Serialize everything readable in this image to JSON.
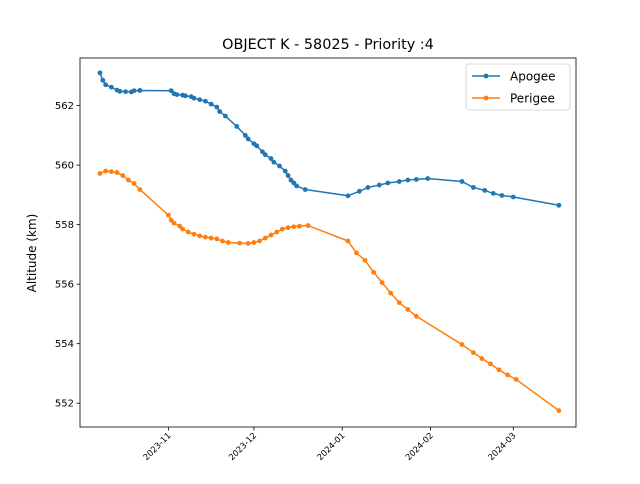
{
  "chart_data": {
    "type": "line",
    "title": "OBJECT K - 58025 - Priority :4",
    "xlabel": "",
    "ylabel": "Altitude (km)",
    "x_type": "date",
    "xlim": [
      "2023-10-01",
      "2024-03-23"
    ],
    "ylim": [
      551.2,
      563.6
    ],
    "x_ticks": [
      {
        "date": "2023-11-01",
        "label": "2023-11"
      },
      {
        "date": "2023-12-01",
        "label": "2023-12"
      },
      {
        "date": "2024-01-01",
        "label": "2024-01"
      },
      {
        "date": "2024-02-01",
        "label": "2024-02"
      },
      {
        "date": "2024-03-01",
        "label": "2024-03"
      }
    ],
    "y_ticks": [
      552,
      554,
      556,
      558,
      560,
      562
    ],
    "grid": false,
    "legend_position": "upper right",
    "series": [
      {
        "name": "Apogee",
        "color": "#1f77b4",
        "marker": "circle",
        "points": [
          [
            "2023-10-08",
            563.1
          ],
          [
            "2023-10-09",
            562.85
          ],
          [
            "2023-10-10",
            562.7
          ],
          [
            "2023-10-12",
            562.62
          ],
          [
            "2023-10-14",
            562.52
          ],
          [
            "2023-10-15",
            562.48
          ],
          [
            "2023-10-17",
            562.47
          ],
          [
            "2023-10-19",
            562.46
          ],
          [
            "2023-10-20",
            562.5
          ],
          [
            "2023-10-22",
            562.51
          ],
          [
            "2023-11-02",
            562.5
          ],
          [
            "2023-11-03",
            562.4
          ],
          [
            "2023-11-04",
            562.37
          ],
          [
            "2023-11-06",
            562.35
          ],
          [
            "2023-11-07",
            562.33
          ],
          [
            "2023-11-09",
            562.3
          ],
          [
            "2023-11-10",
            562.25
          ],
          [
            "2023-11-12",
            562.2
          ],
          [
            "2023-11-14",
            562.15
          ],
          [
            "2023-11-16",
            562.05
          ],
          [
            "2023-11-18",
            561.95
          ],
          [
            "2023-11-19",
            561.8
          ],
          [
            "2023-11-21",
            561.65
          ],
          [
            "2023-11-25",
            561.3
          ],
          [
            "2023-11-28",
            561.0
          ],
          [
            "2023-11-29",
            560.88
          ],
          [
            "2023-12-01",
            560.72
          ],
          [
            "2023-12-02",
            560.65
          ],
          [
            "2023-12-04",
            560.45
          ],
          [
            "2023-12-05",
            560.35
          ],
          [
            "2023-12-07",
            560.22
          ],
          [
            "2023-12-08",
            560.1
          ],
          [
            "2023-12-10",
            559.97
          ],
          [
            "2023-12-12",
            559.8
          ],
          [
            "2023-12-13",
            559.65
          ],
          [
            "2023-12-14",
            559.5
          ],
          [
            "2023-12-15",
            559.4
          ],
          [
            "2023-12-16",
            559.3
          ],
          [
            "2023-12-19",
            559.18
          ],
          [
            "2024-01-03",
            558.97
          ],
          [
            "2024-01-07",
            559.12
          ],
          [
            "2024-01-10",
            559.25
          ],
          [
            "2024-01-14",
            559.33
          ],
          [
            "2024-01-17",
            559.4
          ],
          [
            "2024-01-21",
            559.45
          ],
          [
            "2024-01-24",
            559.5
          ],
          [
            "2024-01-27",
            559.52
          ],
          [
            "2024-01-31",
            559.55
          ],
          [
            "2024-02-12",
            559.45
          ],
          [
            "2024-02-16",
            559.25
          ],
          [
            "2024-02-20",
            559.15
          ],
          [
            "2024-02-23",
            559.05
          ],
          [
            "2024-02-26",
            558.98
          ],
          [
            "2024-03-01",
            558.93
          ],
          [
            "2024-03-17",
            558.65
          ]
        ]
      },
      {
        "name": "Perigee",
        "color": "#ff7f0e",
        "marker": "circle",
        "points": [
          [
            "2023-10-08",
            559.72
          ],
          [
            "2023-10-10",
            559.8
          ],
          [
            "2023-10-12",
            559.78
          ],
          [
            "2023-10-14",
            559.75
          ],
          [
            "2023-10-16",
            559.65
          ],
          [
            "2023-10-18",
            559.5
          ],
          [
            "2023-10-20",
            559.38
          ],
          [
            "2023-10-22",
            559.18
          ],
          [
            "2023-11-01",
            558.32
          ],
          [
            "2023-11-02",
            558.15
          ],
          [
            "2023-11-03",
            558.05
          ],
          [
            "2023-11-05",
            557.95
          ],
          [
            "2023-11-06",
            557.85
          ],
          [
            "2023-11-08",
            557.75
          ],
          [
            "2023-11-10",
            557.68
          ],
          [
            "2023-11-12",
            557.62
          ],
          [
            "2023-11-14",
            557.58
          ],
          [
            "2023-11-16",
            557.55
          ],
          [
            "2023-11-18",
            557.52
          ],
          [
            "2023-11-20",
            557.45
          ],
          [
            "2023-11-22",
            557.4
          ],
          [
            "2023-11-26",
            557.38
          ],
          [
            "2023-11-29",
            557.37
          ],
          [
            "2023-12-01",
            557.4
          ],
          [
            "2023-12-03",
            557.45
          ],
          [
            "2023-12-05",
            557.55
          ],
          [
            "2023-12-07",
            557.65
          ],
          [
            "2023-12-09",
            557.75
          ],
          [
            "2023-12-11",
            557.85
          ],
          [
            "2023-12-13",
            557.9
          ],
          [
            "2023-12-15",
            557.93
          ],
          [
            "2023-12-17",
            557.95
          ],
          [
            "2023-12-20",
            557.97
          ],
          [
            "2024-01-03",
            557.45
          ],
          [
            "2024-01-06",
            557.05
          ],
          [
            "2024-01-09",
            556.8
          ],
          [
            "2024-01-12",
            556.4
          ],
          [
            "2024-01-15",
            556.05
          ],
          [
            "2024-01-18",
            555.7
          ],
          [
            "2024-01-21",
            555.38
          ],
          [
            "2024-01-24",
            555.15
          ],
          [
            "2024-01-27",
            554.92
          ],
          [
            "2024-02-12",
            553.97
          ],
          [
            "2024-02-16",
            553.7
          ],
          [
            "2024-02-19",
            553.5
          ],
          [
            "2024-02-22",
            553.32
          ],
          [
            "2024-02-25",
            553.12
          ],
          [
            "2024-02-28",
            552.95
          ],
          [
            "2024-03-02",
            552.8
          ],
          [
            "2024-03-17",
            551.75
          ]
        ]
      }
    ]
  }
}
